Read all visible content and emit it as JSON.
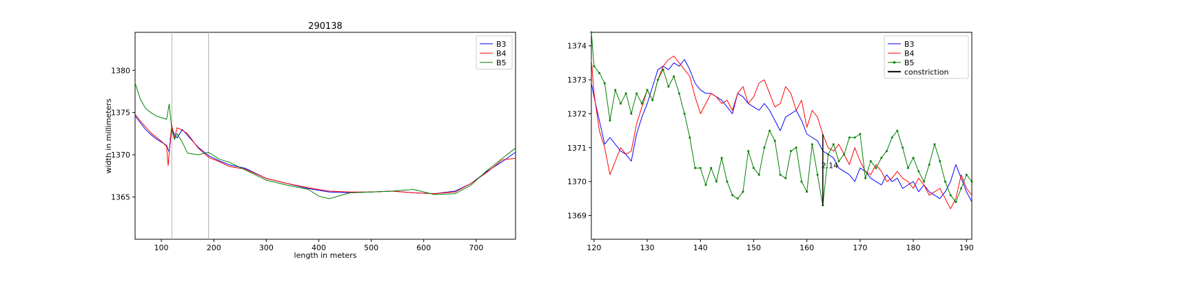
{
  "chart_data": [
    {
      "type": "line",
      "title": "290138",
      "xlabel": "length in meters",
      "ylabel": "width in millimeters",
      "xlim": [
        50,
        775
      ],
      "ylim": [
        1360,
        1384.5
      ],
      "xticks": [
        100,
        200,
        300,
        400,
        500,
        600,
        700
      ],
      "yticks": [
        1365,
        1370,
        1375,
        1380
      ],
      "grid": false,
      "legend_position": "top-right",
      "vertical_lines": [
        120,
        190
      ],
      "vertical_line_color": "#b0b0b0",
      "series": [
        {
          "name": "B3",
          "color": "#0000ff",
          "x": [
            50,
            60,
            70,
            80,
            90,
            100,
            110,
            115,
            120,
            125,
            130,
            140,
            150,
            170,
            190,
            210,
            230,
            260,
            300,
            340,
            380,
            420,
            460,
            500,
            540,
            580,
            620,
            660,
            690,
            720,
            750,
            775
          ],
          "values": [
            1374.6,
            1373.8,
            1373.0,
            1372.4,
            1371.9,
            1371.5,
            1371.1,
            1370.3,
            1373.2,
            1372.4,
            1372.0,
            1373.0,
            1372.3,
            1370.9,
            1369.9,
            1369.3,
            1368.8,
            1368.4,
            1367.2,
            1366.6,
            1366.0,
            1365.6,
            1365.5,
            1365.6,
            1365.7,
            1365.5,
            1365.4,
            1365.7,
            1366.6,
            1368.0,
            1369.2,
            1370.3
          ]
        },
        {
          "name": "B4",
          "color": "#ff0000",
          "x": [
            50,
            60,
            70,
            80,
            90,
            100,
            110,
            113,
            117,
            120,
            125,
            130,
            140,
            150,
            170,
            190,
            210,
            230,
            260,
            300,
            340,
            380,
            420,
            460,
            500,
            540,
            580,
            620,
            660,
            690,
            720,
            750,
            775
          ],
          "values": [
            1374.8,
            1374.0,
            1373.3,
            1372.6,
            1372.1,
            1371.6,
            1371.0,
            1368.7,
            1371.8,
            1373.5,
            1371.9,
            1373.2,
            1372.9,
            1372.5,
            1370.8,
            1369.7,
            1369.2,
            1368.6,
            1368.3,
            1367.2,
            1366.6,
            1366.1,
            1365.7,
            1365.6,
            1365.6,
            1365.7,
            1365.5,
            1365.4,
            1365.6,
            1366.6,
            1367.9,
            1369.4,
            1369.6
          ]
        },
        {
          "name": "B5",
          "color": "#008000",
          "x": [
            50,
            60,
            70,
            80,
            90,
            100,
            110,
            115,
            120,
            125,
            130,
            140,
            150,
            170,
            190,
            210,
            230,
            260,
            300,
            340,
            380,
            400,
            420,
            460,
            500,
            540,
            580,
            620,
            660,
            690,
            720,
            750,
            775
          ],
          "values": [
            1378.5,
            1376.6,
            1375.5,
            1375.0,
            1374.6,
            1374.4,
            1374.2,
            1376.0,
            1373.0,
            1371.8,
            1372.5,
            1371.5,
            1370.2,
            1370.0,
            1370.3,
            1369.5,
            1369.1,
            1368.2,
            1367.0,
            1366.4,
            1365.9,
            1365.1,
            1364.8,
            1365.5,
            1365.6,
            1365.7,
            1365.9,
            1365.3,
            1365.4,
            1366.4,
            1368.1,
            1369.6,
            1370.8
          ]
        }
      ]
    },
    {
      "type": "line",
      "title": "",
      "xlabel": "",
      "ylabel": "",
      "xlim": [
        119.5,
        191
      ],
      "ylim": [
        1368.3,
        1374.4
      ],
      "xticks": [
        120,
        130,
        140,
        150,
        160,
        170,
        180,
        190
      ],
      "yticks": [
        1369,
        1370,
        1371,
        1372,
        1373,
        1374
      ],
      "grid": false,
      "legend_position": "top-right",
      "annotations": [
        {
          "text": "2.14",
          "x": 164.3,
          "y": 1370.4
        }
      ],
      "constriction_line": {
        "x": 163,
        "y": [
          1369.3,
          1371.4
        ],
        "color": "#000000"
      },
      "series": [
        {
          "name": "B3",
          "color": "#0000ff",
          "x": [
            119.5,
            120,
            121,
            122,
            123,
            124,
            125,
            126,
            127,
            128,
            129,
            130,
            131,
            132,
            133,
            134,
            135,
            136,
            137,
            138,
            139,
            140,
            141,
            142,
            143,
            144,
            145,
            146,
            147,
            148,
            149,
            150,
            151,
            152,
            153,
            154,
            155,
            156,
            157,
            158,
            159,
            160,
            161,
            162,
            163,
            164,
            165,
            166,
            167,
            168,
            169,
            170,
            171,
            172,
            173,
            174,
            175,
            176,
            177,
            178,
            179,
            180,
            181,
            182,
            183,
            184,
            185,
            186,
            187,
            188,
            189,
            190,
            191
          ],
          "values": [
            1372.9,
            1372.5,
            1371.8,
            1371.1,
            1371.3,
            1371.1,
            1370.9,
            1370.8,
            1370.6,
            1371.4,
            1371.9,
            1372.3,
            1372.8,
            1373.3,
            1373.4,
            1373.3,
            1373.5,
            1373.4,
            1373.6,
            1373.3,
            1372.9,
            1372.7,
            1372.6,
            1372.6,
            1372.5,
            1372.4,
            1372.2,
            1372.0,
            1372.6,
            1372.5,
            1372.3,
            1372.2,
            1372.1,
            1372.3,
            1372.1,
            1371.8,
            1371.5,
            1371.9,
            1372.0,
            1372.1,
            1371.8,
            1371.4,
            1371.3,
            1371.2,
            1370.9,
            1370.8,
            1370.7,
            1370.4,
            1370.3,
            1370.2,
            1370.0,
            1370.4,
            1370.3,
            1370.1,
            1370.0,
            1369.9,
            1370.2,
            1370.0,
            1370.1,
            1369.8,
            1369.9,
            1370.0,
            1369.7,
            1369.9,
            1369.7,
            1369.6,
            1369.5,
            1369.7,
            1370.0,
            1370.5,
            1370.1,
            1369.7,
            1369.4
          ]
        },
        {
          "name": "B4",
          "color": "#ff0000",
          "x": [
            119.5,
            120,
            121,
            122,
            123,
            124,
            125,
            126,
            127,
            128,
            129,
            130,
            131,
            132,
            133,
            134,
            135,
            136,
            137,
            138,
            139,
            140,
            141,
            142,
            143,
            144,
            145,
            146,
            147,
            148,
            149,
            150,
            151,
            152,
            153,
            154,
            155,
            156,
            157,
            158,
            159,
            160,
            161,
            162,
            163,
            164,
            165,
            166,
            167,
            168,
            169,
            170,
            171,
            172,
            173,
            174,
            175,
            176,
            177,
            178,
            179,
            180,
            181,
            182,
            183,
            184,
            185,
            186,
            187,
            188,
            189,
            190,
            191
          ],
          "values": [
            1373.6,
            1372.6,
            1371.5,
            1371.0,
            1370.2,
            1370.6,
            1371.0,
            1370.8,
            1370.9,
            1371.7,
            1372.2,
            1372.7,
            1372.4,
            1373.0,
            1373.4,
            1373.6,
            1373.7,
            1373.5,
            1373.3,
            1373.1,
            1372.5,
            1372.0,
            1372.3,
            1372.6,
            1372.5,
            1372.3,
            1372.4,
            1372.1,
            1372.6,
            1372.8,
            1372.3,
            1372.5,
            1372.9,
            1373.0,
            1372.6,
            1372.2,
            1372.3,
            1372.8,
            1372.6,
            1372.1,
            1372.4,
            1371.6,
            1372.1,
            1371.9,
            1371.4,
            1371.0,
            1370.9,
            1371.1,
            1370.8,
            1370.5,
            1371.0,
            1370.6,
            1370.3,
            1370.2,
            1370.5,
            1370.3,
            1370.0,
            1370.1,
            1370.3,
            1370.1,
            1370.0,
            1369.8,
            1370.1,
            1369.9,
            1369.6,
            1369.7,
            1369.8,
            1369.5,
            1369.2,
            1369.5,
            1370.2,
            1369.8,
            1369.6
          ]
        },
        {
          "name": "B5",
          "color": "#008000",
          "x": [
            119.5,
            120,
            121,
            122,
            123,
            124,
            125,
            126,
            127,
            128,
            129,
            130,
            131,
            132,
            133,
            134,
            135,
            136,
            137,
            138,
            139,
            140,
            141,
            142,
            143,
            144,
            145,
            146,
            147,
            148,
            149,
            150,
            151,
            152,
            153,
            154,
            155,
            156,
            157,
            158,
            159,
            160,
            161,
            162,
            163,
            164,
            165,
            166,
            167,
            168,
            169,
            170,
            171,
            172,
            173,
            174,
            175,
            176,
            177,
            178,
            179,
            180,
            181,
            182,
            183,
            184,
            185,
            186,
            187,
            188,
            189,
            190,
            191
          ],
          "values": [
            1374.4,
            1373.4,
            1373.2,
            1372.9,
            1371.8,
            1372.7,
            1372.3,
            1372.6,
            1372.0,
            1372.6,
            1372.3,
            1372.7,
            1372.4,
            1373.0,
            1373.3,
            1372.8,
            1373.1,
            1372.6,
            1372.0,
            1371.3,
            1370.4,
            1370.4,
            1369.9,
            1370.4,
            1370.0,
            1370.7,
            1370.0,
            1369.6,
            1369.5,
            1369.7,
            1370.9,
            1370.4,
            1370.2,
            1371.0,
            1371.5,
            1371.2,
            1370.2,
            1370.1,
            1370.9,
            1371.0,
            1370.0,
            1369.7,
            1371.1,
            1370.2,
            1369.3,
            1370.8,
            1371.1,
            1370.6,
            1370.8,
            1371.3,
            1371.3,
            1371.4,
            1370.1,
            1370.6,
            1370.4,
            1370.7,
            1370.9,
            1371.3,
            1371.5,
            1371.0,
            1370.4,
            1370.7,
            1370.3,
            1370.0,
            1370.5,
            1371.1,
            1370.6,
            1370.0,
            1369.6,
            1369.4,
            1369.8,
            1370.2,
            1370.0
          ]
        },
        {
          "name": "constriction",
          "color": "#000000",
          "x": [],
          "values": []
        }
      ]
    }
  ]
}
